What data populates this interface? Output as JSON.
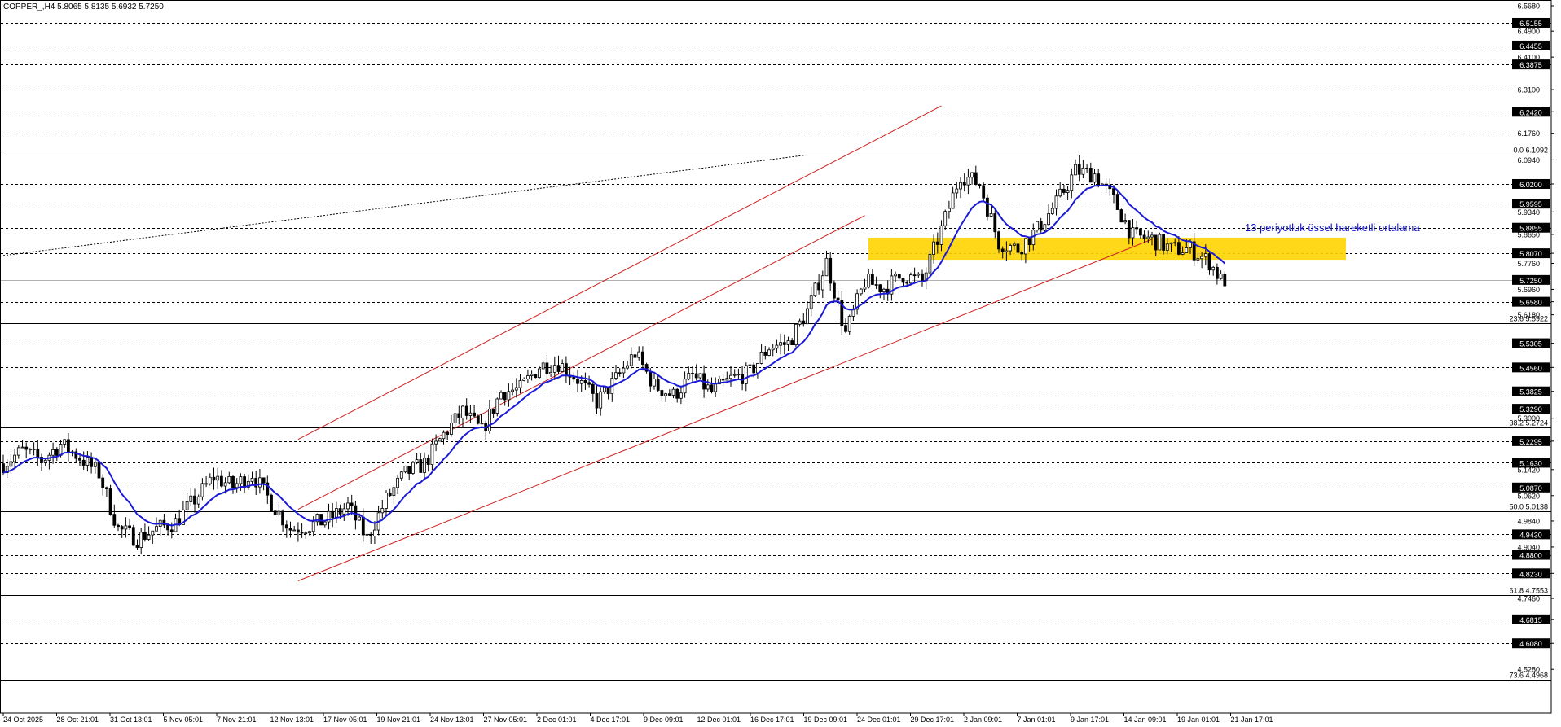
{
  "window": {
    "header": "COPPER_,H4  5.8065 5.8135 5.6932 5.7250"
  },
  "annotation": "13 periyotluk üssel hareketli ortalama",
  "colors": {
    "background": "#ffffff",
    "candle": "#000000",
    "ema": "#1a1ad6",
    "channel": "#cc2020",
    "zone": "#ffd400",
    "grid": "#000000",
    "current_price_line": "#b0b0b0",
    "label_box": "#000000"
  },
  "chart_data": {
    "type": "candlestick",
    "symbol": "COPPER_",
    "timeframe": "H4",
    "ohlc_header": {
      "open": 5.8065,
      "high": 5.8135,
      "low": 5.6932,
      "close": 5.725
    },
    "current_price": 5.725,
    "ylim": [
      4.4968,
      6.568
    ],
    "y_ticks": [
      "6.5680",
      "6.4900",
      "6.4100",
      "6.3100",
      "6.2420",
      "6.1760",
      "6.0940",
      "6.0200",
      "5.9340",
      "5.8650",
      "5.8070",
      "5.7760",
      "5.6960",
      "5.6580",
      "5.6180",
      "5.5305",
      "5.4560",
      "5.3825",
      "5.3000",
      "5.2295",
      "5.1420",
      "5.0620",
      "4.9840",
      "4.9040",
      "4.8230",
      "4.7460",
      "4.6815",
      "4.6080",
      "4.5280"
    ],
    "y_labels_boxed": [
      "6.5155",
      "6.4455",
      "6.3875",
      "6.2420",
      "6.0200",
      "5.9595",
      "5.8855",
      "5.8070",
      "5.7250",
      "5.6580",
      "5.5305",
      "5.4560",
      "5.3825",
      "5.3290",
      "5.2295",
      "5.1630",
      "5.0870",
      "4.9430",
      "4.8800",
      "4.8230",
      "4.6815",
      "4.6080"
    ],
    "horizontal_levels": [
      6.5155,
      6.4455,
      6.3875,
      6.31,
      6.242,
      6.176,
      6.02,
      5.9595,
      5.8855,
      5.807,
      5.658,
      5.5305,
      5.456,
      5.3825,
      5.329,
      5.2295,
      5.163,
      5.087,
      4.943,
      4.88,
      4.823,
      4.6815,
      4.608
    ],
    "fibonacci": [
      {
        "label": "0.0 6.1092",
        "level": "0.0",
        "price": 6.1092
      },
      {
        "label": "23.6 5.5922",
        "level": "23.6",
        "price": 5.5922
      },
      {
        "label": "38.2 5.2724",
        "level": "38.2",
        "price": 5.2724
      },
      {
        "label": "50.0 5.0138",
        "level": "50.0",
        "price": 5.0138
      },
      {
        "label": "61.8 4.7553",
        "level": "61.8",
        "price": 4.7553
      },
      {
        "label": "73.6 4.4968",
        "level": "73.6",
        "price": 4.4968
      }
    ],
    "x_labels": [
      "24 Oct 2025",
      "28 Oct 21:01",
      "31 Oct 13:01",
      "5 Nov 05:01",
      "7 Nov 21:01",
      "12 Nov 13:01",
      "17 Nov 05:01",
      "19 Nov 21:01",
      "24 Nov 13:01",
      "27 Nov 05:01",
      "2 Dec 01:01",
      "4 Dec 17:01",
      "9 Dec 09:01",
      "12 Dec 01:01",
      "16 Dec 17:01",
      "19 Dec 09:01",
      "24 Dec 01:01",
      "29 Dec 17:01",
      "2 Jan 09:01",
      "7 Jan 01:01",
      "9 Jan 17:01",
      "14 Jan 09:01",
      "19 Jan 01:01",
      "21 Jan 17:01"
    ],
    "close_path": [
      [
        0,
        5.16
      ],
      [
        5,
        5.2
      ],
      [
        10,
        5.17
      ],
      [
        15,
        5.22
      ],
      [
        20,
        5.18
      ],
      [
        25,
        5.13
      ],
      [
        30,
        4.96
      ],
      [
        35,
        4.93
      ],
      [
        40,
        4.96
      ],
      [
        45,
        4.98
      ],
      [
        50,
        5.05
      ],
      [
        55,
        5.12
      ],
      [
        60,
        5.09
      ],
      [
        65,
        5.13
      ],
      [
        70,
        5.04
      ],
      [
        75,
        4.96
      ],
      [
        80,
        4.97
      ],
      [
        85,
        4.99
      ],
      [
        90,
        5.03
      ],
      [
        95,
        4.93
      ],
      [
        100,
        5.05
      ],
      [
        105,
        5.13
      ],
      [
        110,
        5.16
      ],
      [
        115,
        5.25
      ],
      [
        120,
        5.32
      ],
      [
        125,
        5.26
      ],
      [
        130,
        5.38
      ],
      [
        135,
        5.39
      ],
      [
        140,
        5.46
      ],
      [
        145,
        5.47
      ],
      [
        150,
        5.42
      ],
      [
        155,
        5.35
      ],
      [
        160,
        5.42
      ],
      [
        165,
        5.5
      ],
      [
        170,
        5.4
      ],
      [
        175,
        5.37
      ],
      [
        180,
        5.43
      ],
      [
        185,
        5.38
      ],
      [
        190,
        5.42
      ],
      [
        195,
        5.44
      ],
      [
        200,
        5.52
      ],
      [
        205,
        5.53
      ],
      [
        210,
        5.63
      ],
      [
        215,
        5.78
      ],
      [
        220,
        5.56
      ],
      [
        225,
        5.72
      ],
      [
        230,
        5.7
      ],
      [
        235,
        5.74
      ],
      [
        240,
        5.72
      ],
      [
        245,
        5.88
      ],
      [
        250,
        6.05
      ],
      [
        255,
        6.02
      ],
      [
        260,
        5.84
      ],
      [
        265,
        5.82
      ],
      [
        270,
        5.88
      ],
      [
        275,
        5.96
      ],
      [
        280,
        6.06
      ],
      [
        285,
        6.05
      ],
      [
        290,
        5.97
      ],
      [
        295,
        5.86
      ],
      [
        300,
        5.85
      ],
      [
        305,
        5.82
      ],
      [
        310,
        5.82
      ],
      [
        315,
        5.78
      ],
      [
        318,
        5.725
      ]
    ],
    "ema_period": 13
  }
}
